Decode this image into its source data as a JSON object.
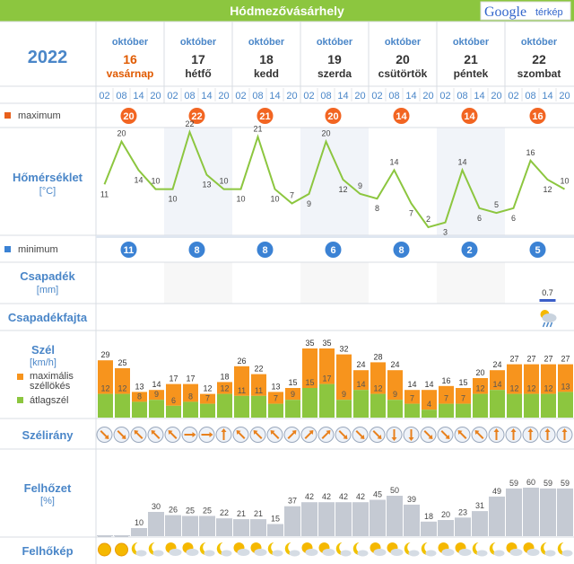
{
  "header": {
    "title": "Hódmezővásárhely",
    "google_label": "Google",
    "map_label": "térkép"
  },
  "year": "2022",
  "days": [
    {
      "month": "október",
      "day": "16",
      "weekday": "vasárnap",
      "sunday": true
    },
    {
      "month": "október",
      "day": "17",
      "weekday": "hétfő",
      "sunday": false
    },
    {
      "month": "október",
      "day": "18",
      "weekday": "kedd",
      "sunday": false
    },
    {
      "month": "október",
      "day": "19",
      "weekday": "szerda",
      "sunday": false
    },
    {
      "month": "október",
      "day": "20",
      "weekday": "csütörtök",
      "sunday": false
    },
    {
      "month": "október",
      "day": "21",
      "weekday": "péntek",
      "sunday": false
    },
    {
      "month": "október",
      "day": "22",
      "weekday": "szombat",
      "sunday": false
    }
  ],
  "hours": [
    "02",
    "08",
    "14",
    "20"
  ],
  "labels": {
    "maximum": "maximum",
    "temperature": "Hőmérséklet",
    "temperature_unit": "[°C]",
    "minimum": "minimum",
    "precip": "Csapadék",
    "precip_unit": "[mm]",
    "precip_type": "Csapadékfajta",
    "wind": "Szél",
    "wind_unit": "[km/h]",
    "gust_legend_1": "maximális",
    "gust_legend_2": "széllökés",
    "avg_legend": "átlagszél",
    "wind_dir": "Szélirány",
    "cloud": "Felhőzet",
    "cloud_unit": "[%]",
    "cloud_pic": "Felhőkép"
  },
  "colors": {
    "accent_blue": "#3b82d4",
    "title_blue": "#4a86c8",
    "orange": "#f7941d",
    "green": "#8cc63f",
    "cloud_bar": "#c5cad3",
    "line": "#8cc63f",
    "sunday_red": "#e05a00"
  },
  "chart_data": {
    "type": "table",
    "max_temp": [
      20,
      22,
      21,
      20,
      14,
      14,
      16
    ],
    "min_temp": [
      11,
      8,
      8,
      6,
      8,
      2,
      5
    ],
    "temperature": [
      11,
      20,
      14,
      10,
      10,
      22,
      13,
      10,
      10,
      21,
      10,
      7,
      9,
      20,
      12,
      9,
      8,
      14,
      7,
      2,
      3,
      14,
      6,
      5,
      6,
      16,
      12,
      10
    ],
    "precip": [
      {
        "slot": 26,
        "value": "0.7"
      }
    ],
    "precip_type_icon": {
      "slot": 26,
      "icon": "partly-cloudy-rain-icon"
    },
    "wind_gust": [
      29,
      25,
      13,
      14,
      17,
      17,
      12,
      18,
      26,
      22,
      13,
      15,
      35,
      35,
      32,
      24,
      28,
      24,
      14,
      14,
      16,
      15,
      20,
      24,
      27,
      27,
      27,
      27
    ],
    "wind_avg": [
      12,
      12,
      8,
      9,
      6,
      8,
      7,
      12,
      11,
      11,
      7,
      9,
      15,
      17,
      9,
      14,
      12,
      9,
      7,
      4,
      7,
      7,
      12,
      14,
      12,
      12,
      12,
      13
    ],
    "wind_dir_deg": [
      135,
      135,
      315,
      315,
      315,
      90,
      90,
      0,
      315,
      315,
      315,
      45,
      45,
      45,
      135,
      135,
      135,
      180,
      180,
      135,
      135,
      315,
      315,
      0,
      0,
      0,
      0,
      0
    ],
    "cloud": [
      0,
      0,
      10,
      30,
      26,
      25,
      25,
      22,
      21,
      21,
      15,
      37,
      42,
      42,
      42,
      42,
      45,
      50,
      39,
      18,
      20,
      23,
      31,
      49,
      59,
      60,
      59,
      59
    ],
    "cloud_icons": [
      "sun-icon",
      "sun-icon",
      "moon-cloud-icon",
      "moon-cloud-icon",
      "sun-cloud-icon",
      "sun-cloud-icon",
      "moon-cloud-icon",
      "moon-cloud-icon",
      "sun-cloud-icon",
      "sun-cloud-icon",
      "moon-cloud-icon",
      "moon-cloud-icon",
      "sun-cloud-icon",
      "sun-cloud-icon",
      "moon-cloud-icon",
      "moon-cloud-icon",
      "sun-cloud-icon",
      "sun-cloud-icon",
      "moon-cloud-icon",
      "moon-cloud-icon",
      "sun-cloud-icon",
      "sun-cloud-icon",
      "moon-cloud-icon",
      "moon-cloud-icon",
      "sun-cloud-icon",
      "sun-cloud-icon",
      "moon-cloud-icon",
      "moon-cloud-icon"
    ]
  }
}
